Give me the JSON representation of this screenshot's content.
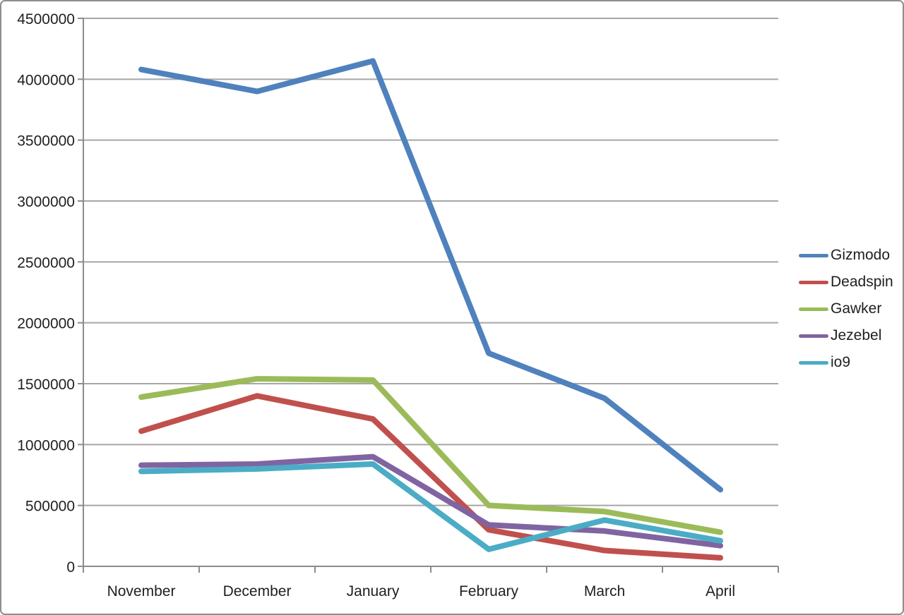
{
  "chart_data": {
    "type": "line",
    "categories": [
      "November",
      "December",
      "January",
      "February",
      "March",
      "April"
    ],
    "series": [
      {
        "name": "Gizmodo",
        "color": "#4F81BD",
        "values": [
          4080000,
          3900000,
          4150000,
          1750000,
          1380000,
          630000
        ]
      },
      {
        "name": "Deadspin",
        "color": "#C0504D",
        "values": [
          1110000,
          1400000,
          1210000,
          300000,
          130000,
          70000
        ]
      },
      {
        "name": "Gawker",
        "color": "#9BBB59",
        "values": [
          1390000,
          1540000,
          1530000,
          500000,
          450000,
          280000
        ]
      },
      {
        "name": "Jezebel",
        "color": "#8064A2",
        "values": [
          830000,
          840000,
          900000,
          340000,
          290000,
          170000
        ]
      },
      {
        "name": "io9",
        "color": "#4BACC6",
        "values": [
          780000,
          800000,
          840000,
          140000,
          380000,
          210000
        ]
      }
    ],
    "ylim": [
      0,
      4500000
    ],
    "ytick_step": 500000,
    "ytick_labels": [
      "0",
      "500000",
      "1000000",
      "1500000",
      "2000000",
      "2500000",
      "3000000",
      "3500000",
      "4000000",
      "4500000"
    ],
    "grid": true,
    "legend_position": "right",
    "style": {
      "grid_color": "#A6A6A6",
      "axis_color": "#8C8C8C",
      "text_color": "#1F1F1F",
      "background": "#FFFFFF",
      "frame_border_color": "#8E8E8E",
      "line_width": 8
    }
  }
}
